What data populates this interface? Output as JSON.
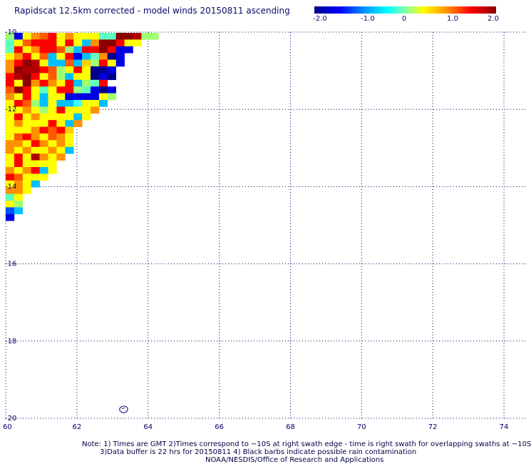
{
  "title": "Rapidscat 12.5km corrected - model winds 20150811 ascending",
  "colorbar": {
    "ticks": [
      "-2.0",
      "-1.0",
      "0",
      "1.0",
      "2.0"
    ],
    "colors": [
      "#00008b",
      "#0000ff",
      "#00bfff",
      "#00ffff",
      "#7fffd4",
      "#ffff00",
      "#ff8c00",
      "#ff0000",
      "#8b0000"
    ]
  },
  "map": {
    "lon_labels": [
      "60",
      "62",
      "64",
      "66",
      "68",
      "70",
      "72",
      "74"
    ],
    "lat_labels": [
      "-10",
      "-12",
      "-14",
      "-16",
      "-18",
      "-20"
    ],
    "lon_range": [
      60,
      74.6
    ],
    "lat_range": [
      -20,
      -10
    ],
    "grid": true,
    "grid_style": "dotted"
  },
  "notes": {
    "line1": "Note: 1) Times are GMT 2)Times correspond to ~10S at right swath edge - time is right swath for overlapping swaths at ~10S",
    "line2": "3)Data buffer is 22 hrs for 20150811 4) Black barbs indicate possible rain contamination",
    "line3": "NOAA/NESDIS/Office of Research and Applications"
  }
}
